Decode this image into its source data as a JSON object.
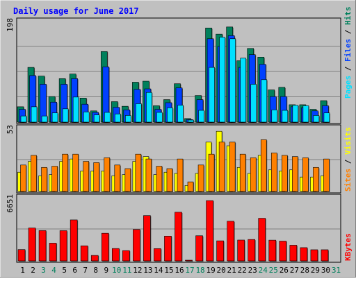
{
  "chart_data": {
    "type": "bar",
    "title": "Daily usage for June 2017",
    "days": [
      "1",
      "2",
      "3",
      "4",
      "5",
      "6",
      "7",
      "8",
      "9",
      "10",
      "11",
      "12",
      "13",
      "14",
      "15",
      "16",
      "17",
      "18",
      "19",
      "20",
      "21",
      "22",
      "23",
      "24",
      "25",
      "26",
      "27",
      "28",
      "29",
      "30",
      "31"
    ],
    "weekend_days": [
      "3",
      "4",
      "10",
      "11",
      "17",
      "18",
      "24",
      "25",
      "31"
    ],
    "panels": [
      {
        "key": "hits",
        "max_label": "198",
        "ymax": 198,
        "series": [
          {
            "name": "Hits",
            "values": [
              30,
              107,
              90,
              50,
              85,
              94,
              47,
              22,
              138,
              40,
              31,
              78,
              80,
              32,
              44,
              75,
              7,
              52,
              184,
              172,
              186,
              120,
              144,
              127,
              63,
              68,
              34,
              34,
              25,
              42,
              null
            ]
          },
          {
            "name": "Files",
            "values": [
              25,
              91,
              74,
              39,
              74,
              85,
              35,
              19,
              108,
              29,
              24,
              64,
              65,
              25,
              38,
              67,
              5,
              44,
              163,
              148,
              169,
              107,
              132,
              113,
              50,
              50,
              30,
              28,
              22,
              32,
              null
            ]
          },
          {
            "name": "Pages",
            "values": [
              12,
              30,
              12,
              18,
              26,
              49,
              20,
              14,
              19,
              16,
              13,
              36,
              58,
              19,
              28,
              33,
              4,
              23,
              107,
              166,
              163,
              125,
              74,
              83,
              24,
              23,
              33,
              32,
              13,
              18,
              null
            ]
          }
        ]
      },
      {
        "key": "visits",
        "max_label": "53",
        "ymax": 53,
        "series": [
          {
            "name": "Visits",
            "values": [
              16,
              25,
              13,
              14,
              25,
              27,
              17,
              17,
              17,
              13,
              14,
              25,
              29,
              14,
              16,
              15,
              5,
              15,
              41,
              50,
              38,
              20,
              15,
              30,
              18,
              17,
              18,
              12,
              12,
              13,
              null
            ]
          },
          {
            "name": "Sites",
            "values": [
              22,
              30,
              20,
              21,
              31,
              31,
              25,
              24,
              28,
              22,
              19,
              31,
              27,
              21,
              19,
              27,
              8,
              22,
              31,
              41,
              41,
              31,
              28,
              43,
              32,
              30,
              29,
              28,
              20,
              27,
              null
            ]
          }
        ]
      },
      {
        "key": "kbytes",
        "max_label": "6651",
        "ymax": 6651,
        "series": [
          {
            "name": "KBytes",
            "values": [
              1180,
              3430,
              3160,
              1850,
              3150,
              4270,
              1570,
              570,
              2880,
              1290,
              1070,
              3270,
              4720,
              1280,
              2580,
              5070,
              70,
              2620,
              6280,
              2090,
              4130,
              2170,
              2230,
              4440,
              2160,
              2060,
              1630,
              1380,
              1160,
              1160,
              null
            ]
          }
        ]
      }
    ],
    "right_labels": {
      "hits": [
        {
          "text": "Pages",
          "color": "#00e0ff"
        },
        {
          "text": "Files",
          "color": "#0040ff"
        },
        {
          "text": "Hits",
          "color": "#00805c"
        }
      ],
      "visits": [
        {
          "text": "Sites",
          "color": "#ff8000"
        },
        {
          "text": "Visits",
          "color": "#ffff00"
        }
      ],
      "kbytes": [
        {
          "text": "KBytes",
          "color": "#ff0000"
        }
      ]
    },
    "colors": {
      "background": "#c0c0c0",
      "title": "#0000ff",
      "weekday_label": "#000000",
      "weekend_label": "#00805c",
      "hits": "#00805c",
      "files": "#0040ff",
      "pages": "#00e0ff",
      "visits": "#ffff00",
      "sites": "#ff8000",
      "kbytes": "#ff0000"
    },
    "separator_labels": "/"
  }
}
